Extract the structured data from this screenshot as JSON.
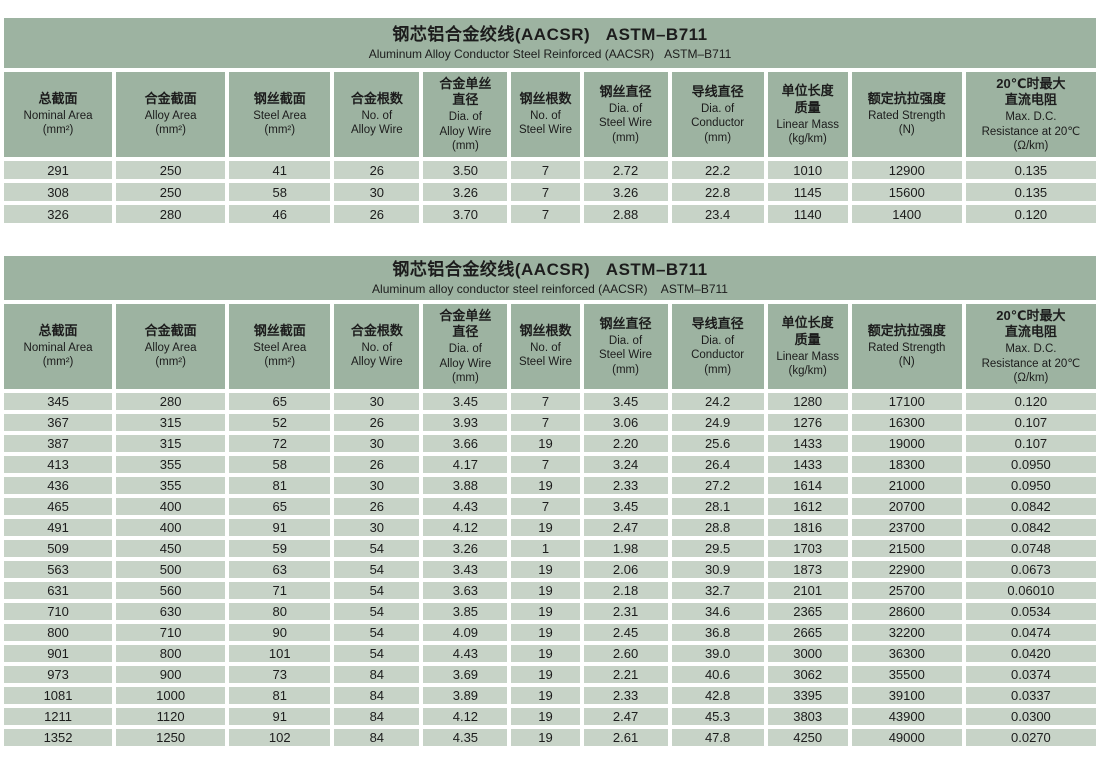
{
  "colors": {
    "header_green": "#9db3a1",
    "cell_green": "#c7d3c7"
  },
  "columns": [
    {
      "zh": "总截面",
      "en": "Nominal Area\n(mm²)"
    },
    {
      "zh": "合金截面",
      "en": "Alloy Area\n(mm²)"
    },
    {
      "zh": "钢丝截面",
      "en": "Steel Area\n(mm²)"
    },
    {
      "zh": "合金根数",
      "en": "No. of\nAlloy Wire"
    },
    {
      "zh": "合金单丝\n直径",
      "en": "Dia. of\nAlloy Wire\n(mm)"
    },
    {
      "zh": "钢丝根数",
      "en": "No. of\nSteel Wire"
    },
    {
      "zh": "钢丝直径",
      "en": "Dia. of\nSteel Wire\n(mm)"
    },
    {
      "zh": "导线直径",
      "en": "Dia. of\nConductor\n(mm)"
    },
    {
      "zh": "单位长度\n质量",
      "en": "Linear Mass\n(kg/km)"
    },
    {
      "zh": "额定抗拉强度",
      "en": "Rated Strength\n(N)"
    },
    {
      "zh": "20℃时最大\n直流电阻",
      "en": "Max. D.C.\nResistance at 20℃\n(Ω/km)"
    }
  ],
  "tables": [
    {
      "title_zh": "钢芯铝合金绞线(AACSR)   ASTM–B711",
      "title_en": "Aluminum Alloy Conductor Steel Reinforced (AACSR)   ASTM–B711",
      "rows": [
        [
          "291",
          "250",
          "41",
          "26",
          "3.50",
          "7",
          "2.72",
          "22.2",
          "1010",
          "12900",
          "0.135"
        ],
        [
          "308",
          "250",
          "58",
          "30",
          "3.26",
          "7",
          "3.26",
          "22.8",
          "1145",
          "15600",
          "0.135"
        ],
        [
          "326",
          "280",
          "46",
          "26",
          "3.70",
          "7",
          "2.88",
          "23.4",
          "1140",
          "1400",
          "0.120"
        ]
      ]
    },
    {
      "title_zh": "钢芯铝合金绞线(AACSR)   ASTM–B711",
      "title_en": "Aluminum alloy conductor steel reinforced (AACSR)    ASTM–B711",
      "rows": [
        [
          "345",
          "280",
          "65",
          "30",
          "3.45",
          "7",
          "3.45",
          "24.2",
          "1280",
          "17100",
          "0.120"
        ],
        [
          "367",
          "315",
          "52",
          "26",
          "3.93",
          "7",
          "3.06",
          "24.9",
          "1276",
          "16300",
          "0.107"
        ],
        [
          "387",
          "315",
          "72",
          "30",
          "3.66",
          "19",
          "2.20",
          "25.6",
          "1433",
          "19000",
          "0.107"
        ],
        [
          "413",
          "355",
          "58",
          "26",
          "4.17",
          "7",
          "3.24",
          "26.4",
          "1433",
          "18300",
          "0.0950"
        ],
        [
          "436",
          "355",
          "81",
          "30",
          "3.88",
          "19",
          "2.33",
          "27.2",
          "1614",
          "21000",
          "0.0950"
        ],
        [
          "465",
          "400",
          "65",
          "26",
          "4.43",
          "7",
          "3.45",
          "28.1",
          "1612",
          "20700",
          "0.0842"
        ],
        [
          "491",
          "400",
          "91",
          "30",
          "4.12",
          "19",
          "2.47",
          "28.8",
          "1816",
          "23700",
          "0.0842"
        ],
        [
          "509",
          "450",
          "59",
          "54",
          "3.26",
          "1",
          "1.98",
          "29.5",
          "1703",
          "21500",
          "0.0748"
        ],
        [
          "563",
          "500",
          "63",
          "54",
          "3.43",
          "19",
          "2.06",
          "30.9",
          "1873",
          "22900",
          "0.0673"
        ],
        [
          "631",
          "560",
          "71",
          "54",
          "3.63",
          "19",
          "2.18",
          "32.7",
          "2101",
          "25700",
          "0.06010"
        ],
        [
          "710",
          "630",
          "80",
          "54",
          "3.85",
          "19",
          "2.31",
          "34.6",
          "2365",
          "28600",
          "0.0534"
        ],
        [
          "800",
          "710",
          "90",
          "54",
          "4.09",
          "19",
          "2.45",
          "36.8",
          "2665",
          "32200",
          "0.0474"
        ],
        [
          "901",
          "800",
          "101",
          "54",
          "4.43",
          "19",
          "2.60",
          "39.0",
          "3000",
          "36300",
          "0.0420"
        ],
        [
          "973",
          "900",
          "73",
          "84",
          "3.69",
          "19",
          "2.21",
          "40.6",
          "3062",
          "35500",
          "0.0374"
        ],
        [
          "1081",
          "1000",
          "81",
          "84",
          "3.89",
          "19",
          "2.33",
          "42.8",
          "3395",
          "39100",
          "0.0337"
        ],
        [
          "1211",
          "1120",
          "91",
          "84",
          "4.12",
          "19",
          "2.47",
          "45.3",
          "3803",
          "43900",
          "0.0300"
        ],
        [
          "1352",
          "1250",
          "102",
          "84",
          "4.35",
          "19",
          "2.61",
          "47.8",
          "4250",
          "49000",
          "0.0270"
        ]
      ]
    }
  ]
}
